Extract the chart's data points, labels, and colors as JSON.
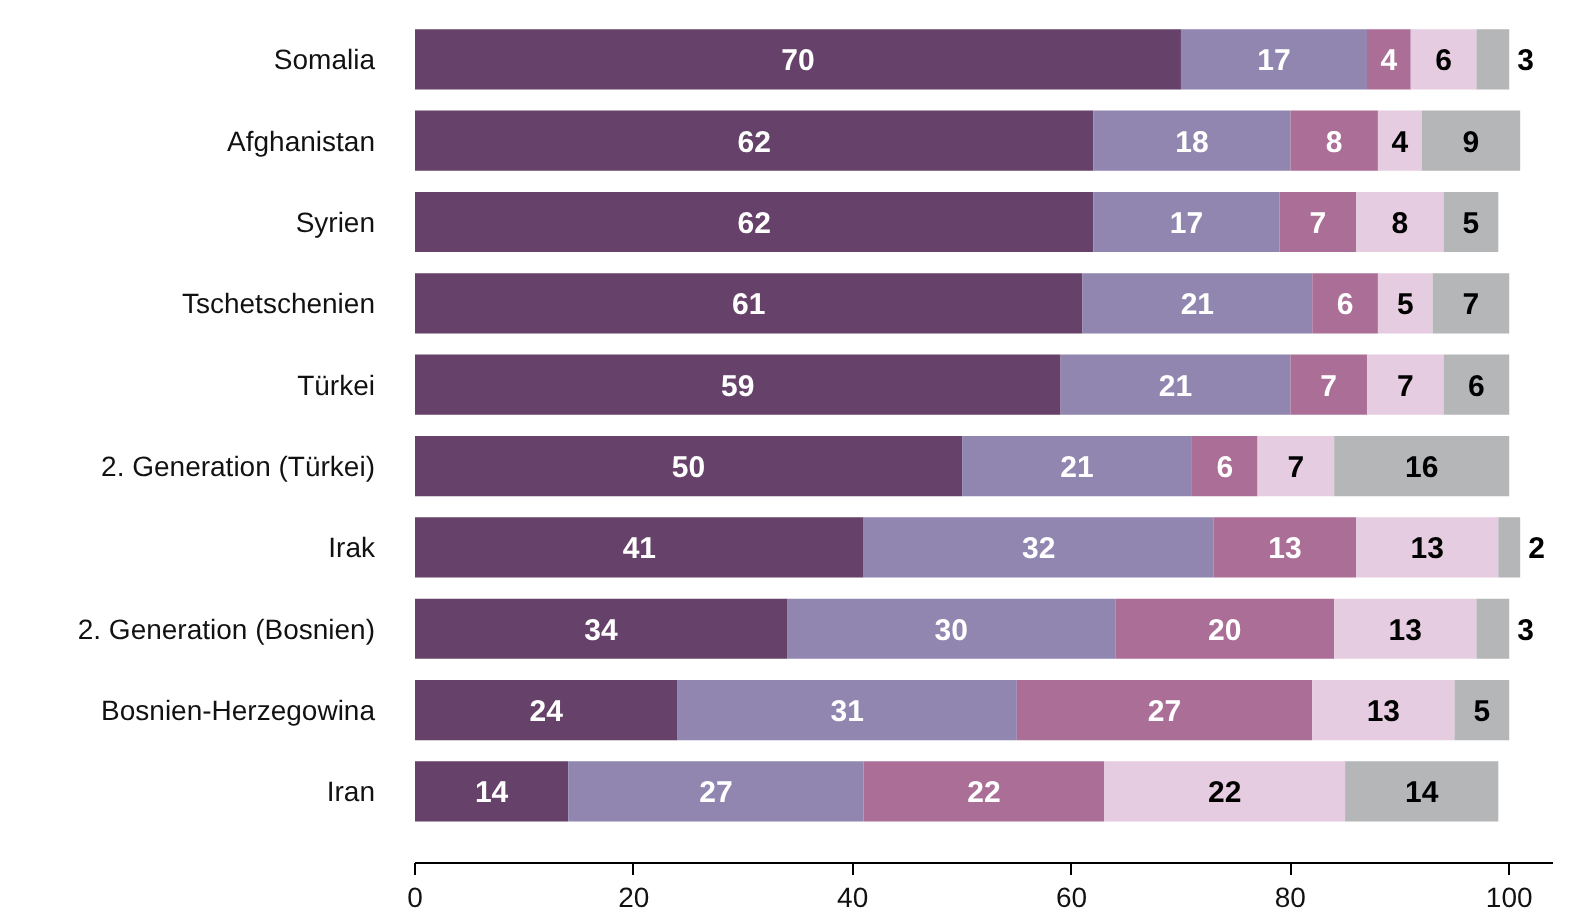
{
  "chart_data": {
    "type": "bar",
    "orientation": "horizontal",
    "stacked": true,
    "categories": [
      "Somalia",
      "Afghanistan",
      "Syrien",
      "Tschetschenien",
      "Türkei",
      "2. Generation (Türkei)",
      "Irak",
      "2. Generation (Bosnien)",
      "Bosnien-Herzegowina",
      "Iran"
    ],
    "series": [
      {
        "color": "#664169",
        "values": [
          70,
          62,
          62,
          61,
          59,
          50,
          41,
          34,
          24,
          14
        ]
      },
      {
        "color": "#9086b0",
        "values": [
          17,
          18,
          17,
          21,
          21,
          21,
          32,
          30,
          31,
          27
        ]
      },
      {
        "color": "#ab6f97",
        "values": [
          4,
          8,
          7,
          6,
          7,
          6,
          13,
          20,
          27,
          22
        ]
      },
      {
        "color": "#e6cce0",
        "values": [
          6,
          4,
          8,
          5,
          7,
          7,
          13,
          13,
          13,
          22
        ]
      },
      {
        "color": "#b5b6b8",
        "values": [
          3,
          9,
          5,
          7,
          6,
          16,
          2,
          3,
          5,
          14
        ]
      }
    ],
    "xlim": [
      0,
      104
    ],
    "xticks": [
      0,
      20,
      40,
      60,
      80,
      100
    ],
    "data_labels": true,
    "grid": false
  }
}
